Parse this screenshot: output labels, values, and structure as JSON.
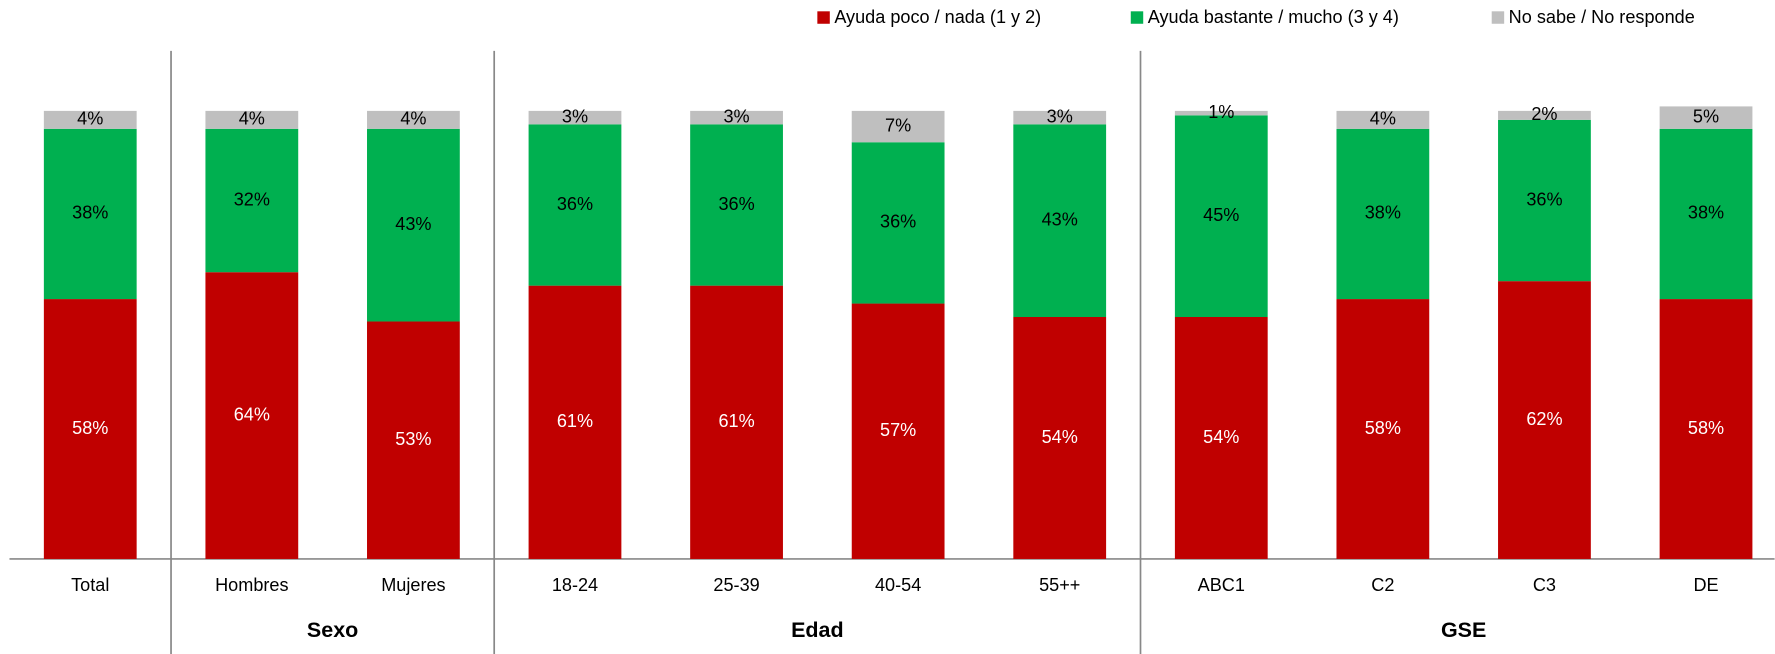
{
  "chart_data": {
    "type": "stacked_bar",
    "categories": [
      "Total",
      "Hombres",
      "Mujeres",
      "18-24",
      "25-39",
      "40-54",
      "55++",
      "ABC1",
      "C2",
      "C3",
      "DE"
    ],
    "groups": [
      {
        "name": "Sexo",
        "members": [
          "Hombres",
          "Mujeres"
        ]
      },
      {
        "name": "Edad",
        "members": [
          "18-24",
          "25-39",
          "40-54",
          "55++"
        ]
      },
      {
        "name": "GSE",
        "members": [
          "ABC1",
          "C2",
          "C3",
          "DE"
        ]
      }
    ],
    "series": [
      {
        "name": "Ayuda poco / nada (1 y 2)",
        "color": "#c00000",
        "label_color": "#ffffff",
        "values": [
          58,
          64,
          53,
          61,
          61,
          57,
          54,
          54,
          58,
          62,
          58
        ],
        "value_labels": [
          "58%",
          "64%",
          "53%",
          "61%",
          "61%",
          "57%",
          "54%",
          "54%",
          "58%",
          "62%",
          "58%"
        ]
      },
      {
        "name": "Ayuda bastante / mucho (3 y 4)",
        "color": "#00b050",
        "label_color": "#000000",
        "values": [
          38,
          32,
          43,
          36,
          36,
          36,
          43,
          45,
          38,
          36,
          38
        ],
        "value_labels": [
          "38%",
          "32%",
          "43%",
          "36%",
          "36%",
          "36%",
          "43%",
          "45%",
          "38%",
          "36%",
          "38%"
        ]
      },
      {
        "name": "No sabe / No responde",
        "color": "#bfbfbf",
        "label_color": "#000000",
        "values": [
          4,
          4,
          4,
          3,
          3,
          7,
          3,
          1,
          4,
          2,
          5
        ],
        "value_labels": [
          "4%",
          "4%",
          "4%",
          "3%",
          "3%",
          "7%",
          "3%",
          "1%",
          "4%",
          "2%",
          "5%"
        ]
      }
    ],
    "legend": "top-right"
  }
}
